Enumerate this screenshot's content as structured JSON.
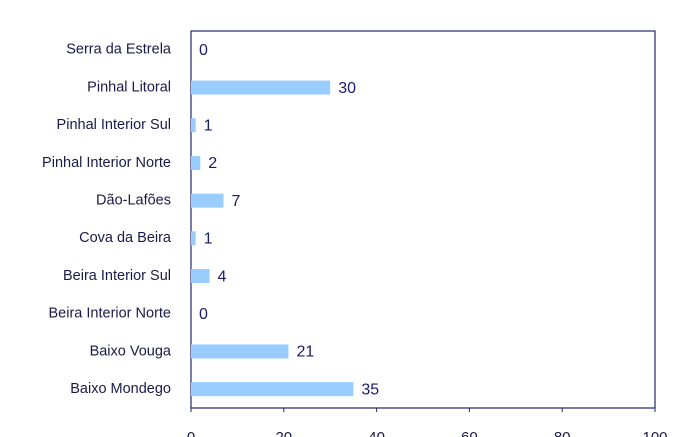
{
  "chart_data": {
    "type": "barh",
    "categories": [
      "Serra da Estrela",
      "Pinhal Litoral",
      "Pinhal Interior Sul",
      "Pinhal Interior Norte",
      "Dão-Lafões",
      "Cova da Beira",
      "Beira Interior Sul",
      "Beira Interior Norte",
      "Baixo Vouga",
      "Baixo Mondego"
    ],
    "values": [
      0,
      30,
      1,
      2,
      7,
      1,
      4,
      0,
      21,
      35
    ],
    "color": "#99ccff",
    "xlim": [
      0,
      100
    ],
    "xticks": [
      0,
      20,
      40,
      60,
      80,
      100
    ]
  }
}
